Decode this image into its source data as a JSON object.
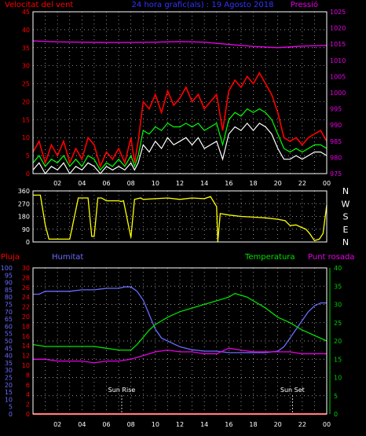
{
  "header": {
    "wind_label": "Velocitat del vent",
    "title": "24 hora grafic(als) : 19 Agosto 2018",
    "pressure_label": "Pressió"
  },
  "colors": {
    "background": "#000000",
    "grid": "#c8c8c8",
    "frame": "#ffffff",
    "wind_gust": "#ff0000",
    "wind_avg": "#00ff00",
    "wind_speed": "#ffffff",
    "pressure": "#e600e6",
    "direction": "#ffff00",
    "rain": "#ff0000",
    "humidity": "#6b6bff",
    "temperature": "#00e000",
    "dewpoint": "#e600e6",
    "axis_red": "#ff0000",
    "axis_green": "#00d000"
  },
  "chart_data": [
    {
      "type": "line",
      "id": "wind-pressure",
      "title": "24 hora grafic(als) : 19 Agosto 2018",
      "left_axis_label": "Velocitat del vent",
      "right_axis_label": "Pressió",
      "x_range": [
        0,
        24
      ],
      "x_ticks": [
        "02",
        "04",
        "06",
        "08",
        "10",
        "12",
        "14",
        "16",
        "18",
        "20",
        "22",
        "00"
      ],
      "ylim_left": [
        0,
        45
      ],
      "yticks_left": [
        0,
        5,
        10,
        15,
        20,
        25,
        30,
        35,
        40,
        45
      ],
      "ylim_right": [
        975,
        1025
      ],
      "yticks_right": [
        975,
        980,
        985,
        990,
        995,
        1000,
        1005,
        1010,
        1015,
        1020,
        1025
      ],
      "grid": true,
      "series": [
        {
          "key": "gust",
          "color": "#ff0000",
          "x": [
            0,
            0.5,
            1,
            1.5,
            2,
            2.5,
            3,
            3.5,
            4,
            4.5,
            5,
            5.5,
            6,
            6.5,
            7,
            7.5,
            8,
            8.3,
            8.6,
            9,
            9.5,
            10,
            10.5,
            11,
            11.5,
            12,
            12.5,
            13,
            13.5,
            14,
            14.5,
            15,
            15.5,
            16,
            16.5,
            17,
            17.5,
            18,
            18.5,
            19,
            19.5,
            20,
            20.5,
            21,
            21.5,
            22,
            22.5,
            23,
            23.5,
            24
          ],
          "y": [
            6,
            9,
            3,
            8,
            5,
            9,
            3,
            7,
            4,
            10,
            8,
            2,
            6,
            4,
            7,
            3,
            10,
            3,
            9,
            20,
            18,
            22,
            17,
            23,
            19,
            21,
            24,
            20,
            22,
            18,
            20,
            22,
            12,
            23,
            26,
            24,
            27,
            25,
            28,
            25,
            22,
            17,
            10,
            9,
            10,
            8,
            10,
            11,
            12,
            9
          ]
        },
        {
          "key": "avg",
          "color": "#00ff00",
          "x": [
            0,
            0.5,
            1,
            1.5,
            2,
            2.5,
            3,
            3.5,
            4,
            4.5,
            5,
            5.5,
            6,
            6.5,
            7,
            7.5,
            8,
            8.3,
            8.6,
            9,
            9.5,
            10,
            10.5,
            11,
            11.5,
            12,
            12.5,
            13,
            13.5,
            14,
            14.5,
            15,
            15.5,
            16,
            16.5,
            17,
            17.5,
            18,
            18.5,
            19,
            19.5,
            20,
            20.5,
            21,
            21.5,
            22,
            22.5,
            23,
            23.5,
            24
          ],
          "y": [
            3,
            5,
            2,
            4,
            3,
            5,
            2,
            4,
            2,
            5,
            4,
            1,
            3,
            2,
            4,
            2,
            5,
            2,
            5,
            12,
            11,
            13,
            12,
            14,
            13,
            13,
            14,
            13,
            14,
            12,
            13,
            14,
            8,
            15,
            17,
            16,
            18,
            17,
            18,
            17,
            15,
            11,
            7,
            6,
            7,
            6,
            7,
            8,
            8,
            7
          ]
        },
        {
          "key": "speed",
          "color": "#ffffff",
          "x": [
            0,
            0.5,
            1,
            1.5,
            2,
            2.5,
            3,
            3.5,
            4,
            4.5,
            5,
            5.5,
            6,
            6.5,
            7,
            7.5,
            8,
            8.3,
            8.6,
            9,
            9.5,
            10,
            10.5,
            11,
            11.5,
            12,
            12.5,
            13,
            13.5,
            14,
            14.5,
            15,
            15.5,
            16,
            16.5,
            17,
            17.5,
            18,
            18.5,
            19,
            19.5,
            20,
            20.5,
            21,
            21.5,
            22,
            22.5,
            23,
            23.5,
            24
          ],
          "y": [
            1,
            3,
            0,
            2,
            1,
            3,
            0,
            2,
            1,
            3,
            2,
            0,
            2,
            1,
            2,
            1,
            3,
            1,
            3,
            8,
            6,
            9,
            7,
            10,
            8,
            9,
            10,
            8,
            10,
            7,
            8,
            9,
            4,
            11,
            13,
            12,
            14,
            12,
            14,
            13,
            11,
            7,
            4,
            4,
            5,
            4,
            5,
            6,
            6,
            5
          ]
        },
        {
          "key": "pressure",
          "axis": "right",
          "color": "#e600e6",
          "x": [
            0,
            2,
            4,
            6,
            8,
            10,
            12,
            14,
            16,
            18,
            20,
            22,
            24
          ],
          "y": [
            1016,
            1015.7,
            1015.6,
            1015.5,
            1015.5,
            1015.6,
            1015.8,
            1015.6,
            1014.9,
            1014.3,
            1013.9,
            1014.4,
            1014.6
          ]
        }
      ]
    },
    {
      "type": "line",
      "id": "wind-direction",
      "x_range": [
        0,
        24
      ],
      "ylim": [
        0,
        360
      ],
      "yticks": [
        0,
        90,
        180,
        270,
        360
      ],
      "compass_labels": [
        "N",
        "W",
        "S",
        "E",
        "N"
      ],
      "grid": true,
      "series": [
        {
          "key": "direction",
          "color": "#ffff00",
          "x": [
            0,
            0.6,
            1,
            1.3,
            2,
            2.8,
            3,
            3.7,
            4.5,
            4.8,
            5,
            5.3,
            5.6,
            6,
            6.5,
            7,
            7.2,
            7.4,
            8,
            8.3,
            8.8,
            9,
            10,
            11,
            12,
            13,
            14,
            14.5,
            15,
            15.1,
            15.3,
            16,
            17,
            18,
            19,
            20,
            20.6,
            21,
            21.5,
            22,
            22.3,
            22.6,
            23,
            23.4,
            23.7,
            24
          ],
          "y": [
            330,
            330,
            120,
            20,
            20,
            20,
            20,
            310,
            310,
            40,
            40,
            310,
            310,
            290,
            290,
            290,
            285,
            290,
            30,
            300,
            310,
            300,
            305,
            310,
            300,
            310,
            305,
            320,
            250,
            0,
            200,
            190,
            180,
            175,
            170,
            160,
            150,
            115,
            120,
            100,
            90,
            60,
            10,
            20,
            60,
            260
          ]
        }
      ]
    },
    {
      "type": "line",
      "id": "humidity-temperature",
      "labels": {
        "rain": "Pluja",
        "humidity": "Humitat",
        "temperature": "Temperatura",
        "dewpoint": "Punt rosada"
      },
      "x_range": [
        0,
        24
      ],
      "ylim_humidity": [
        0,
        100
      ],
      "yticks_humidity": [
        0,
        5,
        10,
        15,
        20,
        25,
        30,
        35,
        40,
        45,
        50,
        55,
        60,
        65,
        70,
        75,
        80,
        85,
        90,
        95,
        100
      ],
      "ylim_rain": [
        0,
        30
      ],
      "yticks_rain": [
        0,
        2,
        4,
        6,
        8,
        10,
        12,
        14,
        16,
        18,
        20,
        22,
        24,
        26,
        28,
        30
      ],
      "ylim_temperature": [
        0,
        40
      ],
      "yticks_temperature": [
        0,
        5,
        10,
        15,
        20,
        25,
        30,
        35,
        40
      ],
      "grid": true,
      "annotations": [
        {
          "text": "Sun Rise",
          "x": 7.25
        },
        {
          "text": "Sun Set",
          "x": 21.2
        }
      ],
      "series": [
        {
          "key": "humidity",
          "axis": "humidity",
          "color": "#6b6bff",
          "x": [
            0,
            0.5,
            1,
            2,
            3,
            4,
            5,
            6,
            7,
            7.5,
            8,
            8.5,
            9,
            9.5,
            10,
            10.5,
            11,
            12,
            13,
            14,
            15,
            16,
            17,
            18,
            19,
            20,
            20.5,
            21,
            21.5,
            22,
            22.5,
            23,
            23.5,
            24
          ],
          "y": [
            82,
            82,
            84,
            84,
            84,
            85,
            85,
            86,
            86,
            87,
            87,
            84,
            78,
            68,
            58,
            52,
            50,
            46,
            44,
            43,
            43,
            42,
            42,
            42,
            42,
            43,
            46,
            52,
            58,
            64,
            70,
            74,
            76,
            76
          ]
        },
        {
          "key": "temperature",
          "axis": "temperature",
          "color": "#00e000",
          "x": [
            0,
            1,
            2,
            3,
            4,
            5,
            6,
            7,
            7.5,
            8,
            8.5,
            9,
            9.5,
            10,
            11,
            12,
            13,
            14,
            15,
            16,
            16.5,
            17,
            17.5,
            18,
            19,
            20,
            21,
            22,
            23,
            24
          ],
          "y": [
            19,
            18.5,
            18.5,
            18.5,
            18.5,
            18.5,
            18,
            17.5,
            17.5,
            17.5,
            19,
            21,
            23,
            24.5,
            26.5,
            28,
            29,
            30,
            31,
            32,
            33,
            32.5,
            32,
            31,
            29,
            26.5,
            25,
            23,
            21.5,
            20
          ]
        },
        {
          "key": "dewpoint",
          "axis": "temperature",
          "color": "#e600e6",
          "x": [
            0,
            1,
            2,
            3,
            4,
            5,
            6,
            7,
            8,
            9,
            10,
            11,
            12,
            13,
            14,
            15,
            16,
            17,
            18,
            19,
            20,
            21,
            22,
            23,
            24
          ],
          "y": [
            15,
            15,
            14.5,
            14.5,
            14.5,
            14,
            14.5,
            14.5,
            15,
            16,
            17,
            17.5,
            17,
            17,
            16.5,
            16.5,
            18,
            17.5,
            17,
            17,
            17,
            17,
            16.5,
            16.5,
            16.5
          ]
        },
        {
          "key": "rain",
          "axis": "rain",
          "color": "#ff0000",
          "x": [
            0,
            24
          ],
          "y": [
            0,
            0
          ]
        }
      ]
    }
  ]
}
